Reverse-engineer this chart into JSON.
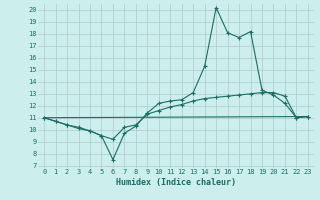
{
  "title": "",
  "xlabel": "Humidex (Indice chaleur)",
  "bg_color": "#cceeed",
  "grid_color": "#b0c8c8",
  "line_color": "#1a6e64",
  "xlim": [
    -0.5,
    23.5
  ],
  "ylim": [
    6.8,
    20.5
  ],
  "xticks": [
    0,
    1,
    2,
    3,
    4,
    5,
    6,
    7,
    8,
    9,
    10,
    11,
    12,
    13,
    14,
    15,
    16,
    17,
    18,
    19,
    20,
    21,
    22,
    23
  ],
  "yticks": [
    7,
    8,
    9,
    10,
    11,
    12,
    13,
    14,
    15,
    16,
    17,
    18,
    19,
    20
  ],
  "line1_x": [
    0,
    1,
    2,
    3,
    4,
    5,
    6,
    7,
    8,
    9,
    10,
    11,
    12,
    13,
    14,
    15,
    16,
    17,
    18,
    19,
    20,
    21,
    22,
    23
  ],
  "line1_y": [
    11.0,
    10.7,
    10.4,
    10.2,
    9.9,
    9.5,
    7.5,
    9.7,
    10.3,
    11.4,
    12.2,
    12.4,
    12.5,
    13.1,
    15.3,
    20.2,
    18.1,
    17.7,
    18.2,
    13.3,
    12.9,
    12.2,
    11.0,
    11.1
  ],
  "line2_x": [
    0,
    1,
    2,
    3,
    4,
    5,
    6,
    7,
    8,
    9,
    10,
    11,
    12,
    13,
    14,
    15,
    16,
    17,
    18,
    19,
    20,
    21,
    22,
    23
  ],
  "line2_y": [
    11.0,
    10.7,
    10.4,
    10.1,
    9.9,
    9.5,
    9.2,
    10.2,
    10.4,
    11.3,
    11.6,
    11.9,
    12.1,
    12.4,
    12.6,
    12.7,
    12.8,
    12.9,
    13.0,
    13.1,
    13.1,
    12.8,
    11.0,
    11.1
  ],
  "line3_x": [
    0,
    23
  ],
  "line3_y": [
    11.0,
    11.1
  ]
}
